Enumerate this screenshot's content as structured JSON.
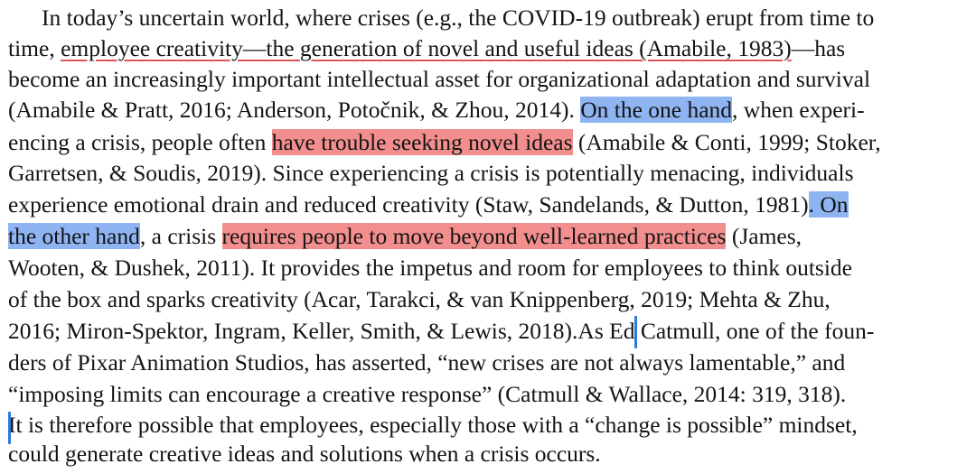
{
  "document": {
    "paragraph_lines": [
      [
        "In today’s uncertain world, where crises (e.g., the COVID-19 outbreak) erupt from time to"
      ],
      [
        "time, ",
        "employee creativity—the generation of novel and useful ideas (Amabile, 1983)",
        "—has"
      ],
      [
        "become an increasingly important intellectual asset for organizational adaptation and survival"
      ],
      [
        "(Amabile & Pratt, 2016; Anderson, Potočnik, & Zhou, 2014). ",
        "On the one hand",
        ", when experi-"
      ],
      [
        "encing a crisis, people often ",
        "have trouble seeking novel ideas",
        " (Amabile & Conti, 1999; Stoker,"
      ],
      [
        "Garretsen, & Soudis, 2019). Since experiencing a crisis is potentially menacing, individuals"
      ],
      [
        "experience emotional drain and reduced creativity (Staw, Sandelands, & Dutton, 1981)",
        ". On"
      ],
      [
        "the other hand",
        ", a crisis ",
        "requires people to move beyond well-learned practices",
        " (James,"
      ],
      [
        "Wooten, & Dushek, 2011). It provides the impetus and room for employees to think outside"
      ],
      [
        "of the box and sparks creativity (Acar, Tarakci, & van Knippenberg, 2019; Mehta & Zhu,"
      ],
      [
        "2016; Miron-Spektor, Ingram, Keller, Smith, & Lewis, 2018).",
        "As Ed Catmull, one of the foun-"
      ],
      [
        "ders of Pixar Animation Studios, has asserted, “new crises are not always lamentable,” and"
      ],
      [
        "“imposing limits can encourage a creative response” (Catmull & Wallace, 2014: 319, 318)."
      ],
      [
        "It is therefore possible that employees, especially those with a “change is possible” mindset,"
      ],
      [
        "could generate creative ideas and solutions when a crisis occurs."
      ]
    ],
    "highlight_colors": {
      "blue": "#8fb4f2",
      "red": "#f28e8e",
      "underline_red": "#e05454",
      "caret": "#2a78e0"
    }
  }
}
